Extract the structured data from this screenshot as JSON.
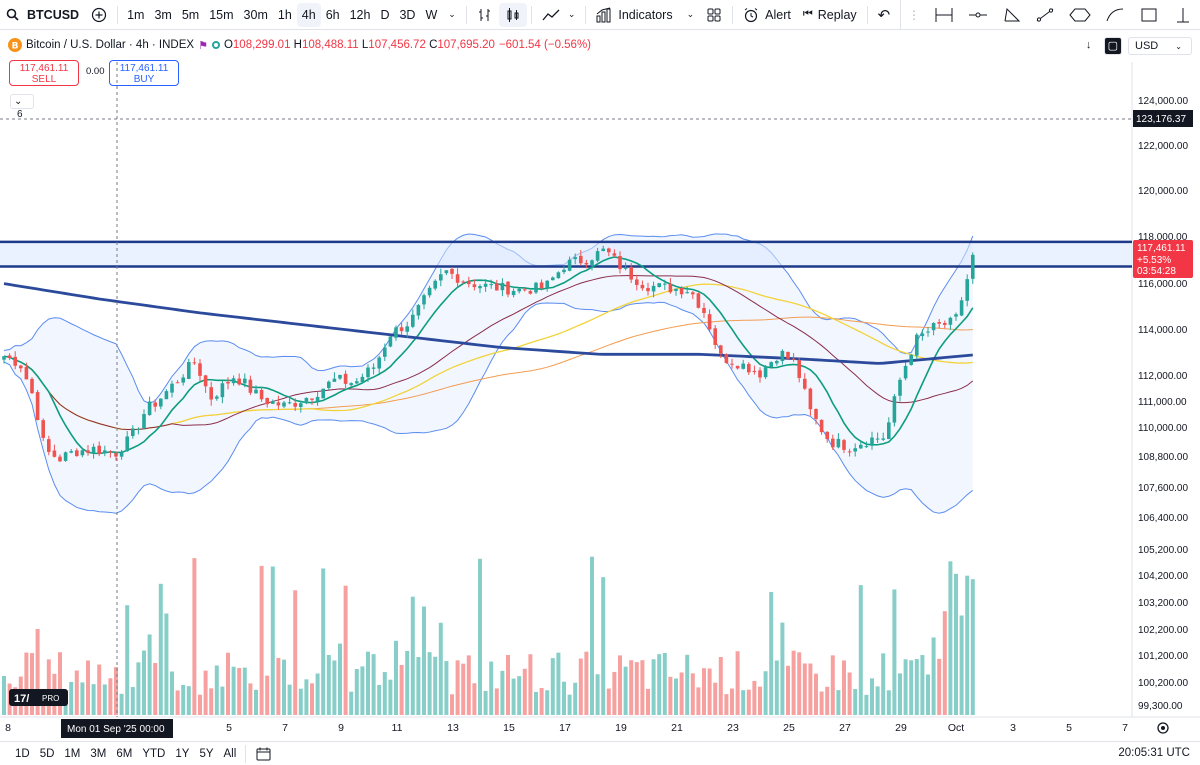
{
  "toolbar": {
    "symbol": "BTCUSD",
    "timeframes": [
      "1m",
      "3m",
      "5m",
      "15m",
      "30m",
      "1h",
      "4h",
      "6h",
      "12h",
      "D",
      "3D",
      "W"
    ],
    "active_timeframe": "4h",
    "indicators_label": "Indicators",
    "alert_label": "Alert",
    "replay_label": "Replay"
  },
  "legend": {
    "title": "Bitcoin / U.S. Dollar · 4h · INDEX",
    "ohlc": [
      {
        "k": "O",
        "v": "108,299.01"
      },
      {
        "k": "H",
        "v": "108,488.11"
      },
      {
        "k": "L",
        "v": "107,456.72"
      },
      {
        "k": "C",
        "v": "107,695.20"
      }
    ],
    "change": "−601.54 (−0.56%)",
    "indicator_count": "6"
  },
  "trade": {
    "sell_price": "117,461.11",
    "sell_label": "SELL",
    "buy_price": "117,461.11",
    "buy_label": "BUY",
    "spread": "0.00"
  },
  "price_axis": {
    "currency": "USD",
    "ticks": [
      "124,000.00",
      "122,000.00",
      "120,000.00",
      "118,000.00",
      "116,000.00",
      "114,000.00",
      "112,000.00",
      "111,000.00",
      "110,000.00",
      "108,800.00",
      "107,600.00",
      "106,400.00",
      "105,200.00",
      "104,200.00",
      "103,200.00",
      "102,200.00",
      "101,200.00",
      "100,200.00",
      "99,300.00"
    ],
    "crosshair_price": "123,176.37",
    "last_price": "117,461.11",
    "last_change": "+5.53%",
    "countdown": "03:54:28"
  },
  "time_axis": {
    "ticks": [
      "8",
      "3",
      "5",
      "7",
      "9",
      "11",
      "13",
      "15",
      "17",
      "19",
      "21",
      "23",
      "25",
      "27",
      "29",
      "Oct",
      "3",
      "5",
      "7"
    ],
    "crosshair_label": "Mon 01 Sep '25   00:00"
  },
  "bottom": {
    "ranges": [
      "1D",
      "5D",
      "1M",
      "3M",
      "6M",
      "YTD",
      "1Y",
      "5Y",
      "All"
    ],
    "clock": "20:05:31 UTC"
  },
  "colors": {
    "up": "#26a69a",
    "down": "#ef5350",
    "ma200": "#2b4a9b",
    "bb": "#5b8def",
    "ma_green": "#0d9d7e",
    "ma_maroon": "#8b2d4a",
    "ma_yellow": "#f2d33a",
    "ma_orange": "#f29d52",
    "zone": "#1e3a8a",
    "last_price_bg": "#f23645"
  },
  "chart_data": {
    "type": "candlestick",
    "symbol": "BTCUSD",
    "interval": "4h",
    "ylim": [
      99300,
      124000
    ],
    "resistance_zone": [
      116700,
      117750
    ],
    "last_price": 117461.11,
    "x_labels": [
      "8",
      "3",
      "5",
      "7",
      "9",
      "11",
      "13",
      "15",
      "17",
      "19",
      "21",
      "23",
      "25",
      "27",
      "29",
      "Oct",
      "3",
      "5",
      "7"
    ],
    "close_path": [
      [
        0,
        112900
      ],
      [
        20,
        112500
      ],
      [
        35,
        111000
      ],
      [
        45,
        109000
      ],
      [
        60,
        108700
      ],
      [
        75,
        109000
      ],
      [
        95,
        109100
      ],
      [
        115,
        108900
      ],
      [
        130,
        109500
      ],
      [
        145,
        110600
      ],
      [
        160,
        111100
      ],
      [
        175,
        111700
      ],
      [
        195,
        112600
      ],
      [
        210,
        111100
      ],
      [
        235,
        112000
      ],
      [
        260,
        111100
      ],
      [
        285,
        110800
      ],
      [
        310,
        111200
      ],
      [
        335,
        111800
      ],
      [
        355,
        111700
      ],
      [
        375,
        112400
      ],
      [
        390,
        113800
      ],
      [
        410,
        114300
      ],
      [
        425,
        115300
      ],
      [
        445,
        116500
      ],
      [
        470,
        116000
      ],
      [
        495,
        115800
      ],
      [
        520,
        115700
      ],
      [
        545,
        115800
      ],
      [
        565,
        116800
      ],
      [
        585,
        117000
      ],
      [
        605,
        117400
      ],
      [
        625,
        116500
      ],
      [
        645,
        115900
      ],
      [
        665,
        115800
      ],
      [
        690,
        115700
      ],
      [
        705,
        114700
      ],
      [
        720,
        112800
      ],
      [
        740,
        112500
      ],
      [
        760,
        112100
      ],
      [
        780,
        113000
      ],
      [
        795,
        112500
      ],
      [
        810,
        110600
      ],
      [
        830,
        109400
      ],
      [
        850,
        109200
      ],
      [
        870,
        109500
      ],
      [
        885,
        109600
      ],
      [
        900,
        111800
      ],
      [
        915,
        113500
      ],
      [
        935,
        114100
      ],
      [
        955,
        114300
      ],
      [
        965,
        115800
      ],
      [
        975,
        117461
      ]
    ],
    "ma200": [
      [
        0,
        116000
      ],
      [
        100,
        115300
      ],
      [
        200,
        114700
      ],
      [
        300,
        114200
      ],
      [
        400,
        113700
      ],
      [
        500,
        113200
      ],
      [
        600,
        112900
      ],
      [
        700,
        112900
      ],
      [
        800,
        112700
      ],
      [
        880,
        112500
      ],
      [
        980,
        112900
      ]
    ],
    "volume_range": [
      0,
      1
    ]
  }
}
